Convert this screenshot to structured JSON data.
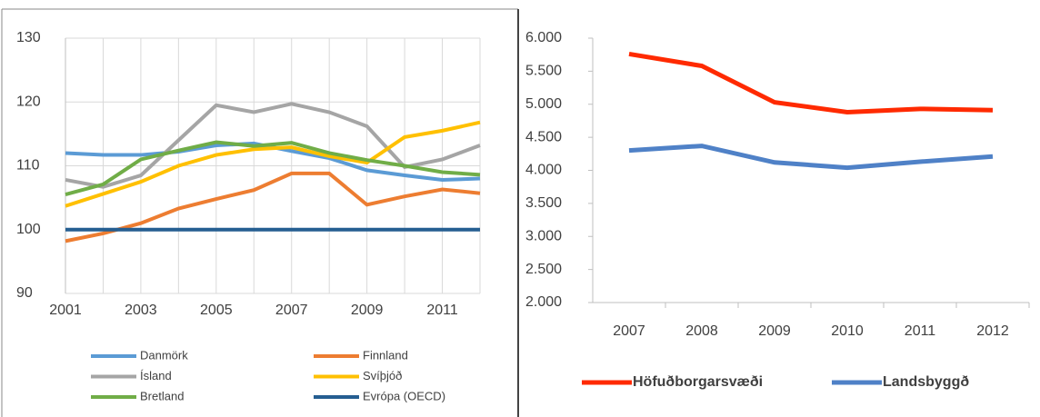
{
  "chart_data": [
    {
      "type": "line",
      "x": [
        2001,
        2002,
        2003,
        2004,
        2005,
        2006,
        2007,
        2008,
        2009,
        2010,
        2011,
        2012
      ],
      "xlim": [
        2001,
        2012
      ],
      "xticks": [
        2001,
        2003,
        2005,
        2007,
        2009,
        2011
      ],
      "ylim": [
        90,
        130
      ],
      "yticks": [
        90,
        100,
        110,
        120,
        130
      ],
      "grid": true,
      "legend": "bottom",
      "series": [
        {
          "name": "Danmörk",
          "color": "#5b9bd5",
          "values": [
            112,
            111.7,
            111.7,
            112.2,
            113.2,
            113.5,
            112.3,
            111.2,
            109.3,
            108.5,
            107.8,
            108
          ]
        },
        {
          "name": "Finnland",
          "color": "#ed7d31",
          "values": [
            98.2,
            99.4,
            101,
            103.3,
            104.8,
            106.2,
            108.8,
            108.8,
            103.9,
            105.2,
            106.3,
            105.7
          ]
        },
        {
          "name": "Ísland",
          "color": "#a5a5a5",
          "values": [
            107.8,
            106.7,
            108.5,
            114,
            119.5,
            118.4,
            119.7,
            118.4,
            116.2,
            109.8,
            111,
            113.2
          ]
        },
        {
          "name": "Svíþjóð",
          "color": "#ffc000",
          "values": [
            103.7,
            105.6,
            107.5,
            110,
            111.7,
            112.6,
            112.9,
            111.5,
            110.5,
            114.5,
            115.5,
            116.8
          ]
        },
        {
          "name": "Bretland",
          "color": "#70ad47",
          "values": [
            105.5,
            107.1,
            111,
            112.4,
            113.7,
            113.1,
            113.6,
            112,
            110.9,
            110,
            109,
            108.6
          ]
        },
        {
          "name": "Evrópa (OECD)",
          "color": "#255e91",
          "values": [
            100,
            100,
            100,
            100,
            100,
            100,
            100,
            100,
            100,
            100,
            100,
            100
          ]
        }
      ]
    },
    {
      "type": "line",
      "categories": [
        "2007",
        "2008",
        "2009",
        "2010",
        "2011",
        "2012"
      ],
      "ylim": [
        2000,
        6000
      ],
      "yticks": [
        {
          "value": 2000,
          "label": "2.000"
        },
        {
          "value": 2500,
          "label": "2.500"
        },
        {
          "value": 3000,
          "label": "3.000"
        },
        {
          "value": 3500,
          "label": "3.500"
        },
        {
          "value": 4000,
          "label": "4.000"
        },
        {
          "value": 4500,
          "label": "4.500"
        },
        {
          "value": 5000,
          "label": "5.000"
        },
        {
          "value": 5500,
          "label": "5.500"
        },
        {
          "value": 6000,
          "label": "6.000"
        }
      ],
      "grid": false,
      "legend": "bottom",
      "series": [
        {
          "name": "Höfuðborgarsvæði",
          "color": "#ff2a00",
          "values": [
            5760,
            5580,
            5030,
            4880,
            4930,
            4910
          ]
        },
        {
          "name": "Landsbyggð",
          "color": "#4f81c7",
          "values": [
            4300,
            4370,
            4120,
            4040,
            4130,
            4210
          ]
        }
      ]
    }
  ]
}
